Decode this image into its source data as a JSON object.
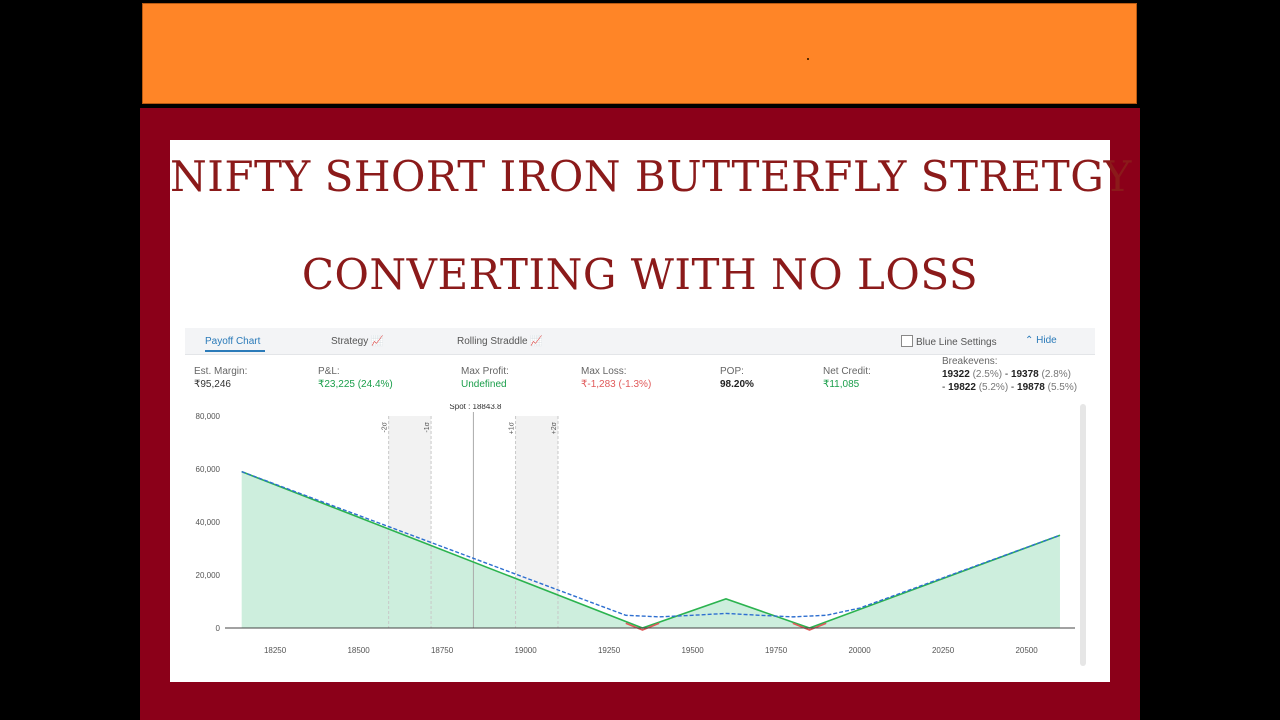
{
  "title_line1": "NIFTY SHORT IRON BUTTERFLY STRETGY",
  "title_line2": "CONVERTING WITH NO LOSS",
  "tabs": {
    "payoff": "Payoff Chart",
    "strategy": "Strategy",
    "rolling": "Rolling Straddle",
    "blue_line": "Blue Line Settings",
    "hide": "Hide"
  },
  "stats": {
    "margin_label": "Est. Margin:",
    "margin_value": "₹95,246",
    "pnl_label": "P&L:",
    "pnl_value": "₹23,225 (24.4%)",
    "maxprofit_label": "Max Profit:",
    "maxprofit_value": "Undefined",
    "maxloss_label": "Max Loss:",
    "maxloss_value": "₹-1,283 (-1.3%)",
    "pop_label": "POP:",
    "pop_value": "98.20%",
    "netcredit_label": "Net Credit:",
    "netcredit_value": "₹11,085",
    "breakeven_label": "Breakevens:",
    "be1": "19322",
    "be1_pct": "(2.5%)",
    "be2": "19378",
    "be2_pct": "(2.8%)",
    "be3": "19822",
    "be3_pct": "(5.2%)",
    "be4": "19878",
    "be4_pct": "(5.5%)"
  },
  "colors": {
    "profit": "#1a9e4a",
    "loss": "#e05a5a",
    "fill": "#cdeedd",
    "expiry_line": "#2bb34f",
    "target_line": "#2e6fd0"
  },
  "chart_data": {
    "type": "area",
    "xlim": [
      18130,
      20630
    ],
    "ylim": [
      0,
      80000
    ],
    "x_ticks": [
      18250,
      18500,
      18750,
      19000,
      19250,
      19500,
      19750,
      20000,
      20250,
      20500
    ],
    "y_ticks": [
      0,
      20000,
      40000,
      60000,
      80000
    ],
    "y_tick_labels": [
      "0",
      "20,000",
      "40,000",
      "60,000",
      "80,000"
    ],
    "spot_label": "Spot : 18843.8",
    "spot": 18843.8,
    "sigma_lines": [
      {
        "label": "-2σ",
        "x": 18590
      },
      {
        "label": "-1σ",
        "x": 18717
      },
      {
        "label": "+1σ",
        "x": 18970
      },
      {
        "label": "+2σ",
        "x": 19097
      }
    ],
    "series": [
      {
        "name": "",
        "x": [
          18150,
          19350,
          19600,
          19850,
          20600
        ],
        "y": [
          59000,
          0,
          11000,
          0,
          35000
        ]
      },
      {
        "name": "",
        "x": [
          18150,
          19200,
          19300,
          19400,
          19500,
          19600,
          19700,
          19800,
          19900,
          20000,
          20600
        ],
        "y": [
          59000,
          9500,
          4800,
          4200,
          4800,
          5500,
          4800,
          4200,
          4800,
          7500,
          35000
        ]
      }
    ]
  }
}
